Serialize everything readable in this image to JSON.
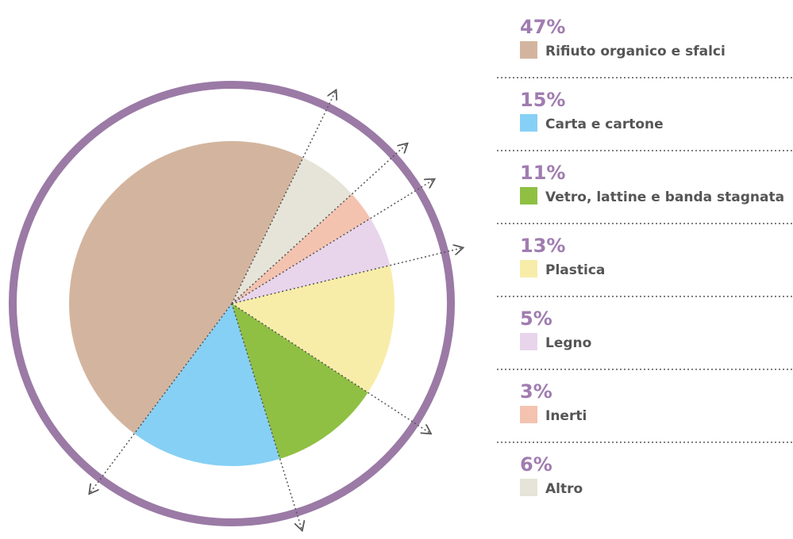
{
  "chart_data": {
    "type": "pie",
    "categories": [
      "Rifiuto organico e sfalci",
      "Carta e cartone",
      "Vetro, lattine e banda stagnata",
      "Plastica",
      "Legno",
      "Inerti",
      "Altro"
    ],
    "values": [
      47,
      15,
      11,
      13,
      5,
      3,
      6
    ],
    "value_labels": [
      "47%",
      "15%",
      "11%",
      "13%",
      "5%",
      "3%",
      "6%"
    ],
    "colors": [
      "#d3b59f",
      "#86d0f5",
      "#8fc043",
      "#f8eda8",
      "#e8d5ec",
      "#f3c3b0",
      "#e6e4d8"
    ]
  }
}
